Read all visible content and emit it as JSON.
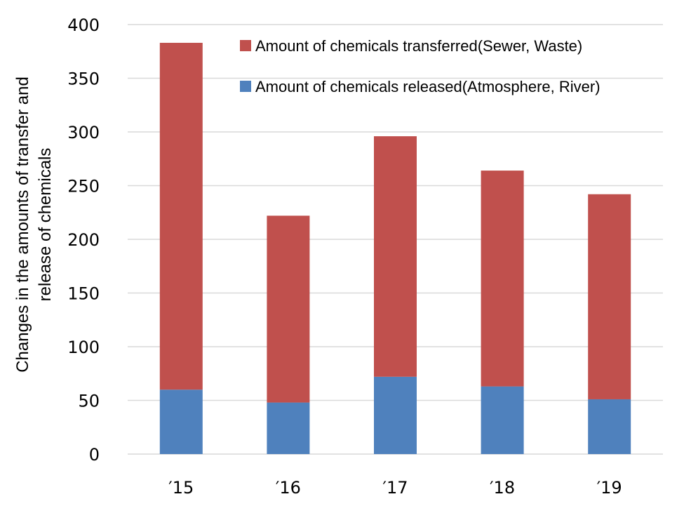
{
  "chart_data": {
    "type": "bar",
    "stacked": true,
    "categories": [
      "′15",
      "′16",
      "′17",
      "′18",
      "′19"
    ],
    "series": [
      {
        "name": "Amount of chemicals released(Atmosphere, River)",
        "values": [
          60,
          48,
          72,
          63,
          51
        ],
        "color": "#4f81bd"
      },
      {
        "name": "Amount of chemicals transferred(Sewer, Waste)",
        "values": [
          323,
          174,
          224,
          201,
          191
        ],
        "color": "#c0504d"
      }
    ],
    "ylabel_lines": [
      "Changes in the amounts of transfer and",
      "release of chemicals"
    ],
    "ylim": [
      0,
      400
    ],
    "yticks": [
      "0",
      "50",
      "100",
      "150",
      "200",
      "250",
      "300",
      "350",
      "400"
    ],
    "grid": true,
    "legend_position": "top-right",
    "legend_order": [
      1,
      0
    ]
  }
}
